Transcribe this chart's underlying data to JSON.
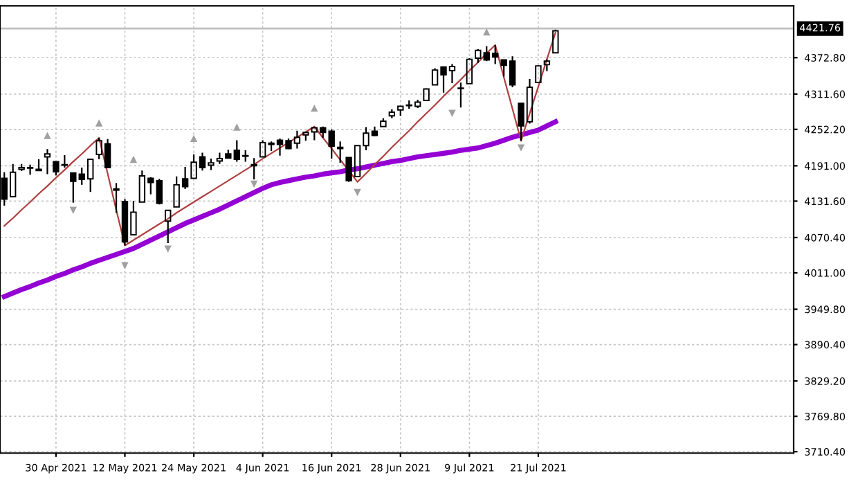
{
  "chart_data": {
    "type": "candlestick",
    "categories": [
      null,
      null,
      null,
      null,
      null,
      null,
      "30 Apr 2021",
      null,
      null,
      null,
      null,
      null,
      null,
      null,
      "12 May 2021",
      null,
      null,
      null,
      null,
      null,
      null,
      null,
      "24 May 2021",
      null,
      null,
      null,
      null,
      null,
      null,
      null,
      "4 Jun 2021",
      null,
      null,
      null,
      null,
      null,
      null,
      null,
      "16 Jun 2021",
      null,
      null,
      null,
      null,
      null,
      null,
      null,
      "28 Jun 2021",
      null,
      null,
      null,
      null,
      null,
      null,
      null,
      "9 Jul 2021",
      null,
      null,
      null,
      null,
      null,
      null,
      null,
      "21 Jul 2021",
      null,
      null
    ],
    "ohlc": [
      [
        4170,
        4180,
        4124,
        4135
      ],
      [
        4139,
        4194,
        4139,
        4180
      ],
      [
        4185,
        4194,
        4182,
        4188
      ],
      [
        4188,
        4193,
        4176,
        4187
      ],
      [
        4185,
        4202,
        4182,
        4183
      ],
      [
        4206,
        4219,
        4177,
        4211
      ],
      [
        4198,
        4198,
        4175,
        4181
      ],
      [
        4192,
        4209,
        4188,
        4193
      ],
      [
        4179,
        4179,
        4129,
        4165
      ],
      [
        4177,
        4188,
        4159,
        4168
      ],
      [
        4169,
        4203,
        4147,
        4202
      ],
      [
        4210,
        4238,
        4202,
        4233
      ],
      [
        4228,
        4236,
        4188,
        4188
      ],
      [
        4150,
        4162,
        4112,
        4152
      ],
      [
        4131,
        4135,
        4057,
        4063
      ],
      [
        4075,
        4132,
        4075,
        4113
      ],
      [
        4130,
        4183,
        4130,
        4174
      ],
      [
        4170,
        4172,
        4143,
        4163
      ],
      [
        4166,
        4169,
        4126,
        4128
      ],
      [
        4098,
        4117,
        4061,
        4116
      ],
      [
        4122,
        4173,
        4122,
        4159
      ],
      [
        4169,
        4189,
        4152,
        4156
      ],
      [
        4170,
        4210,
        4170,
        4197
      ],
      [
        4206,
        4213,
        4183,
        4188
      ],
      [
        4192,
        4203,
        4184,
        4196
      ],
      [
        4199,
        4213,
        4194,
        4203
      ],
      [
        4211,
        4218,
        4204,
        4204
      ],
      [
        4217,
        4234,
        4198,
        4202
      ],
      [
        4207,
        4217,
        4198,
        4208
      ],
      [
        4191,
        4204,
        4168,
        4193
      ],
      [
        4206,
        4234,
        4206,
        4230
      ],
      [
        4229,
        4232,
        4216,
        4227
      ],
      [
        4234,
        4237,
        4208,
        4227
      ],
      [
        4233,
        4237,
        4219,
        4220
      ],
      [
        4229,
        4250,
        4220,
        4239
      ],
      [
        4243,
        4248,
        4233,
        4247
      ],
      [
        4248,
        4256,
        4234,
        4255
      ],
      [
        4255,
        4257,
        4238,
        4247
      ],
      [
        4249,
        4252,
        4203,
        4224
      ],
      [
        4220,
        4232,
        4196,
        4222
      ],
      [
        4205,
        4205,
        4164,
        4166
      ],
      [
        4173,
        4226,
        4173,
        4225
      ],
      [
        4225,
        4256,
        4217,
        4246
      ],
      [
        4249,
        4257,
        4241,
        4242
      ],
      [
        4257,
        4271,
        4257,
        4266
      ],
      [
        4275,
        4286,
        4271,
        4281
      ],
      [
        4285,
        4292,
        4275,
        4291
      ],
      [
        4293,
        4301,
        4287,
        4292
      ],
      [
        4291,
        4302,
        4288,
        4298
      ],
      [
        4301,
        4321,
        4301,
        4320
      ],
      [
        4327,
        4355,
        4327,
        4352
      ],
      [
        4357,
        4357,
        4314,
        4344
      ],
      [
        4351,
        4362,
        4330,
        4358
      ],
      [
        4321,
        4331,
        4289,
        4321
      ],
      [
        4329,
        4372,
        4329,
        4370
      ],
      [
        4372,
        4387,
        4364,
        4385
      ],
      [
        4381,
        4392,
        4367,
        4369
      ],
      [
        4380,
        4394,
        4362,
        4374
      ],
      [
        4369,
        4369,
        4341,
        4360
      ],
      [
        4367,
        4375,
        4323,
        4327
      ],
      [
        4296,
        4296,
        4233,
        4258
      ],
      [
        4265,
        4337,
        4262,
        4323
      ],
      [
        4331,
        4360,
        4331,
        4359
      ],
      [
        4361,
        4370,
        4350,
        4367
      ],
      [
        4381,
        4420,
        4381,
        4418
      ]
    ],
    "series": [
      {
        "type": "line",
        "color": "#9400d3",
        "values": [
          3971,
          3977,
          3983,
          3988,
          3994,
          3999,
          4005,
          4010,
          4016,
          4021,
          4027,
          4032,
          4037,
          4042,
          4047,
          4052,
          4059,
          4066,
          4073,
          4080,
          4087,
          4094,
          4100,
          4106,
          4112,
          4118,
          4125,
          4132,
          4139,
          4146,
          4153,
          4159,
          4163,
          4166,
          4169,
          4172,
          4174,
          4177,
          4179,
          4181,
          4184,
          4186,
          4189,
          4192,
          4195,
          4198,
          4200,
          4203,
          4206,
          4208,
          4210,
          4212,
          4214,
          4217,
          4219,
          4221,
          4225,
          4229,
          4234,
          4239,
          4243,
          4247,
          4251,
          4258,
          4265
        ]
      },
      {
        "type": "line",
        "color": "#b04040",
        "values": [
          4090,
          4103,
          4117,
          4130,
          4144,
          4157,
          4171,
          4184,
          4198,
          4211,
          4225,
          4238,
          4178,
          4117,
          4057,
          4066,
          4075,
          4084,
          4093,
          4102,
          4112,
          4121,
          4130,
          4139,
          4148,
          4157,
          4166,
          4175,
          4184,
          4193,
          4203,
          4212,
          4221,
          4230,
          4239,
          4248,
          4257,
          4238,
          4220,
          4201,
          4183,
          4164,
          4178,
          4193,
          4207,
          4222,
          4236,
          4250,
          4265,
          4279,
          4293,
          4308,
          4322,
          4336,
          4351,
          4365,
          4380,
          4394,
          4340,
          4287,
          4233,
          4279,
          4324,
          4370,
          4415
        ]
      },
      {
        "type": "scatter",
        "color": "#a0a0a0",
        "marker": "triangle",
        "values": [
          null,
          null,
          null,
          null,
          null,
          4242,
          null,
          null,
          null,
          null,
          null,
          4263,
          null,
          null,
          null,
          4202,
          null,
          null,
          null,
          null,
          null,
          null,
          4237,
          null,
          null,
          null,
          null,
          4256,
          null,
          null,
          null,
          null,
          null,
          null,
          null,
          null,
          4288,
          null,
          null,
          null,
          null,
          null,
          null,
          null,
          null,
          null,
          null,
          null,
          null,
          null,
          null,
          null,
          null,
          null,
          null,
          null,
          4416,
          null,
          null,
          null,
          null,
          null,
          null,
          null,
          null
        ]
      },
      {
        "type": "scatter",
        "color": "#a0a0a0",
        "marker": "triangle_down",
        "values": [
          null,
          null,
          null,
          null,
          null,
          null,
          null,
          null,
          4116,
          null,
          null,
          null,
          null,
          null,
          4023,
          null,
          null,
          null,
          null,
          4051,
          null,
          null,
          null,
          null,
          null,
          null,
          null,
          null,
          null,
          4160,
          null,
          null,
          null,
          null,
          null,
          null,
          null,
          null,
          null,
          null,
          null,
          4146,
          null,
          null,
          null,
          null,
          null,
          null,
          null,
          null,
          null,
          null,
          4279,
          null,
          null,
          null,
          null,
          null,
          null,
          null,
          4221,
          null,
          null,
          null,
          null
        ]
      }
    ],
    "ylim": [
      3708,
      4460
    ],
    "yticks": [
      {
        "value": 3710.4,
        "label": "3710.40"
      },
      {
        "value": 3769.8,
        "label": "3769.80"
      },
      {
        "value": 3829.2,
        "label": "3829.20"
      },
      {
        "value": 3890.4,
        "label": "3890.40"
      },
      {
        "value": 3949.8,
        "label": "3949.80"
      },
      {
        "value": 4011,
        "label": "4011.00"
      },
      {
        "value": 4070.4,
        "label": "4070.40"
      },
      {
        "value": 4131.6,
        "label": "4131.60"
      },
      {
        "value": 4191,
        "label": "4191.00"
      },
      {
        "value": 4252.2,
        "label": "4252.20"
      },
      {
        "value": 4311.6,
        "label": "4311.60"
      },
      {
        "value": 4372.8,
        "label": "4372.80"
      }
    ],
    "ref_lines": [
      {
        "axis": "y",
        "value": 4421.76,
        "label": "4421.76",
        "color": "#c0c0c0"
      }
    ],
    "grid": true
  }
}
